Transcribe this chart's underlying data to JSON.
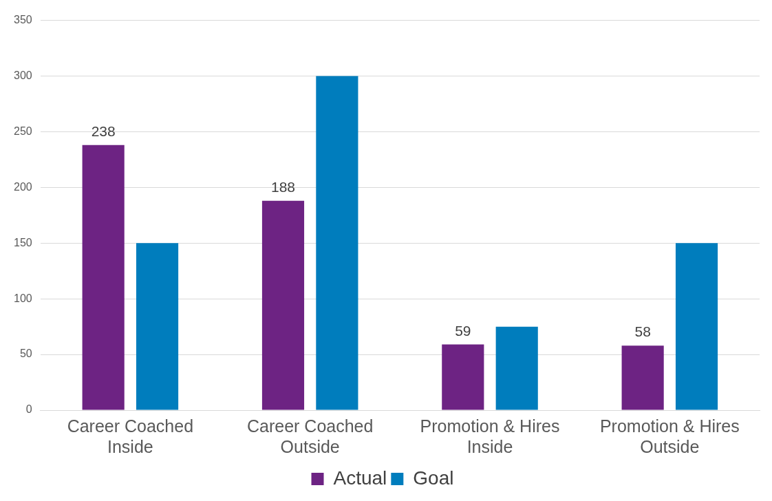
{
  "chart_data": {
    "type": "bar",
    "categories": [
      "Career Coached Inside",
      "Career Coached Outside",
      "Promotion & Hires Inside",
      "Promotion & Hires Outside"
    ],
    "series": [
      {
        "name": "Actual",
        "color": "#6d2383",
        "values": [
          238,
          188,
          59,
          58
        ],
        "value_labels": [
          "238",
          "188",
          "59",
          "58"
        ]
      },
      {
        "name": "Goal",
        "color": "#007dbd",
        "values": [
          150,
          300,
          75,
          150
        ]
      }
    ],
    "ylim": [
      0,
      350
    ],
    "yticks": [
      0,
      50,
      100,
      150,
      200,
      250,
      300,
      350
    ],
    "grid": "y",
    "legend": "bottom"
  }
}
